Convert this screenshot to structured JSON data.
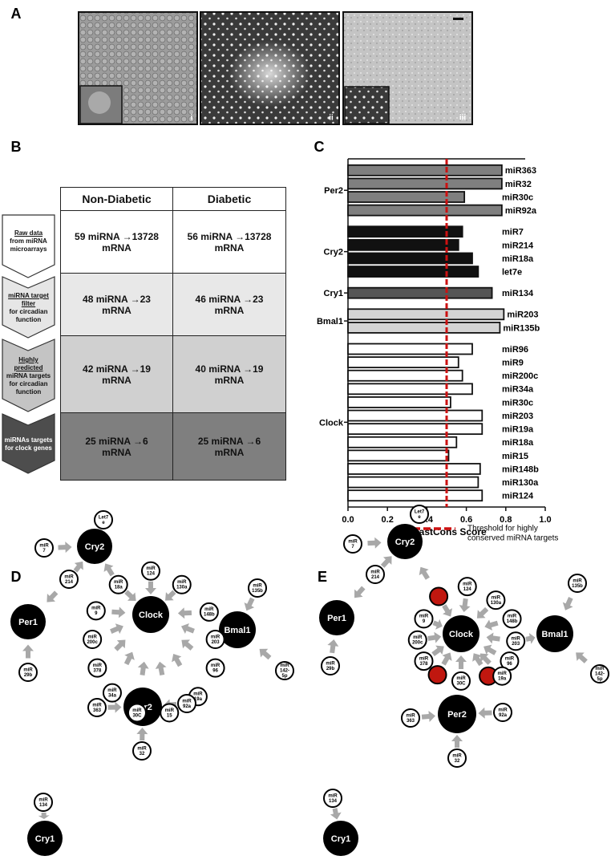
{
  "panel_labels": [
    "A",
    "B",
    "C",
    "D",
    "E"
  ],
  "micrographs": [
    "i",
    "ii",
    "iii"
  ],
  "table": {
    "columns": [
      "Non-Diabetic",
      "Diabetic"
    ],
    "steps": [
      {
        "title": "Raw data",
        "text": "from miRNA microarrays",
        "cells": [
          "59 miRNA →13728 mRNA",
          "56 miRNA →13728 mRNA"
        ]
      },
      {
        "title": "miRNA target filter",
        "text": "for circadian function",
        "cells": [
          "48 miRNA →23 mRNA",
          "46 miRNA →23 mRNA"
        ]
      },
      {
        "title": "Highly predicted",
        "text": "miRNA targets for circadian function",
        "cells": [
          "42 miRNA →19 mRNA",
          "40 miRNA →19 mRNA"
        ]
      },
      {
        "text": "miRNAs targets for clock genes",
        "cells": [
          "25 miRNA →6 mRNA",
          "25 miRNA →6 mRNA"
        ]
      }
    ]
  },
  "chart_data": {
    "type": "bar",
    "orientation": "horizontal",
    "xlabel": "PhastCons Score",
    "xlim": [
      0,
      1
    ],
    "xticks": [
      {
        "value": 0,
        "label": "0.0"
      },
      {
        "value": 0.2,
        "label": "0.2"
      },
      {
        "value": 0.4,
        "label": "0.4"
      },
      {
        "value": 0.6,
        "label": "0.6"
      },
      {
        "value": 0.8,
        "label": "0.8"
      },
      {
        "value": 1,
        "label": "1.0"
      }
    ],
    "groups": [
      {
        "name": "Per2",
        "color": "#7f7f7f",
        "categories": [
          "miR363",
          "miR32",
          "miR30c",
          "miR92a"
        ],
        "values": [
          0.78,
          0.78,
          0.59,
          0.78
        ]
      },
      {
        "name": "Cry2",
        "color": "#111111",
        "categories": [
          "miR7",
          "miR214",
          "miR18a",
          "let7e"
        ],
        "values": [
          0.58,
          0.56,
          0.63,
          0.66
        ]
      },
      {
        "name": "Cry1",
        "color": "#555555",
        "categories": [
          "miR134"
        ],
        "values": [
          0.73
        ]
      },
      {
        "name": "Bmal1",
        "color": "#d4d4d4",
        "categories": [
          "miR203",
          "miR135b"
        ],
        "values": [
          0.79,
          0.77
        ]
      },
      {
        "name": "Clock",
        "color": "#ffffff",
        "categories": [
          "miR96",
          "miR9",
          "miR200c",
          "miR34a",
          "miR30c",
          "miR203",
          "miR19a",
          "miR18a",
          "miR15",
          "miR148b",
          "miR130a",
          "miR124"
        ],
        "values": [
          0.63,
          0.56,
          0.58,
          0.63,
          0.52,
          0.68,
          0.68,
          0.55,
          0.51,
          0.67,
          0.66,
          0.68
        ]
      }
    ],
    "threshold": {
      "value": 0.5,
      "color": "#cc1111",
      "label_lines": [
        "Threshold for highly",
        "conserved miRNA targets"
      ]
    }
  },
  "network_d": {
    "hubs": [
      "Cry2",
      "Per1",
      "Clock",
      "Bmal1",
      "Per2",
      "Cry1"
    ],
    "mirnas": [
      {
        "lines": [
          "miR",
          "7"
        ]
      },
      {
        "lines": [
          "Let7",
          "e"
        ]
      },
      {
        "lines": [
          "miR",
          "214"
        ]
      },
      {
        "lines": [
          "miR",
          "29b"
        ]
      },
      {
        "lines": [
          "miR",
          "18a"
        ]
      },
      {
        "lines": [
          "miR",
          "124"
        ]
      },
      {
        "lines": [
          "miR",
          "130a"
        ]
      },
      {
        "lines": [
          "miR",
          "9"
        ]
      },
      {
        "lines": [
          "miR",
          "148b"
        ]
      },
      {
        "lines": [
          "miR",
          "200c"
        ]
      },
      {
        "lines": [
          "miR",
          "203"
        ]
      },
      {
        "lines": [
          "miR",
          "378"
        ]
      },
      {
        "lines": [
          "miR",
          "96"
        ]
      },
      {
        "lines": [
          "miR",
          "34a"
        ]
      },
      {
        "lines": [
          "miR",
          "30C"
        ]
      },
      {
        "lines": [
          "miR",
          "15"
        ]
      },
      {
        "lines": [
          "miR",
          "19a"
        ]
      },
      {
        "lines": [
          "miR",
          "135b"
        ]
      },
      {
        "lines": [
          "miR",
          "142-",
          "5p"
        ]
      },
      {
        "lines": [
          "miR",
          "363"
        ]
      },
      {
        "lines": [
          "miR",
          "92a"
        ]
      },
      {
        "lines": [
          "miR",
          "32"
        ]
      },
      {
        "lines": [
          "miR",
          "134"
        ]
      }
    ]
  },
  "network_e": {
    "hubs": [
      "Cry2",
      "Per1",
      "Clock",
      "Bmal1",
      "Per2",
      "Cry1"
    ],
    "highlight_color": "#c0170f",
    "mirnas": [
      {
        "lines": [
          "miR",
          "7"
        ]
      },
      {
        "lines": [
          "Let7",
          "e"
        ]
      },
      {
        "lines": [
          "miR",
          "214"
        ]
      },
      {
        "lines": [
          "miR",
          "29b"
        ]
      },
      {
        "highlighted": true
      },
      {
        "lines": [
          "miR",
          "124"
        ]
      },
      {
        "lines": [
          "miR",
          "130a"
        ]
      },
      {
        "lines": [
          "miR",
          "9"
        ]
      },
      {
        "lines": [
          "miR",
          "148b"
        ]
      },
      {
        "lines": [
          "miR",
          "200c"
        ]
      },
      {
        "lines": [
          "miR",
          "203"
        ]
      },
      {
        "lines": [
          "miR",
          "378"
        ]
      },
      {
        "lines": [
          "miR",
          "96"
        ]
      },
      {
        "highlighted": true
      },
      {
        "lines": [
          "miR",
          "30C"
        ]
      },
      {
        "highlighted": true
      },
      {
        "lines": [
          "miR",
          "19a"
        ]
      },
      {
        "lines": [
          "miR",
          "135b"
        ]
      },
      {
        "lines": [
          "miR",
          "142-",
          "5p"
        ]
      },
      {
        "lines": [
          "miR",
          "363"
        ]
      },
      {
        "lines": [
          "miR",
          "92a"
        ]
      },
      {
        "lines": [
          "miR",
          "32"
        ]
      },
      {
        "lines": [
          "miR",
          "134"
        ]
      }
    ]
  }
}
